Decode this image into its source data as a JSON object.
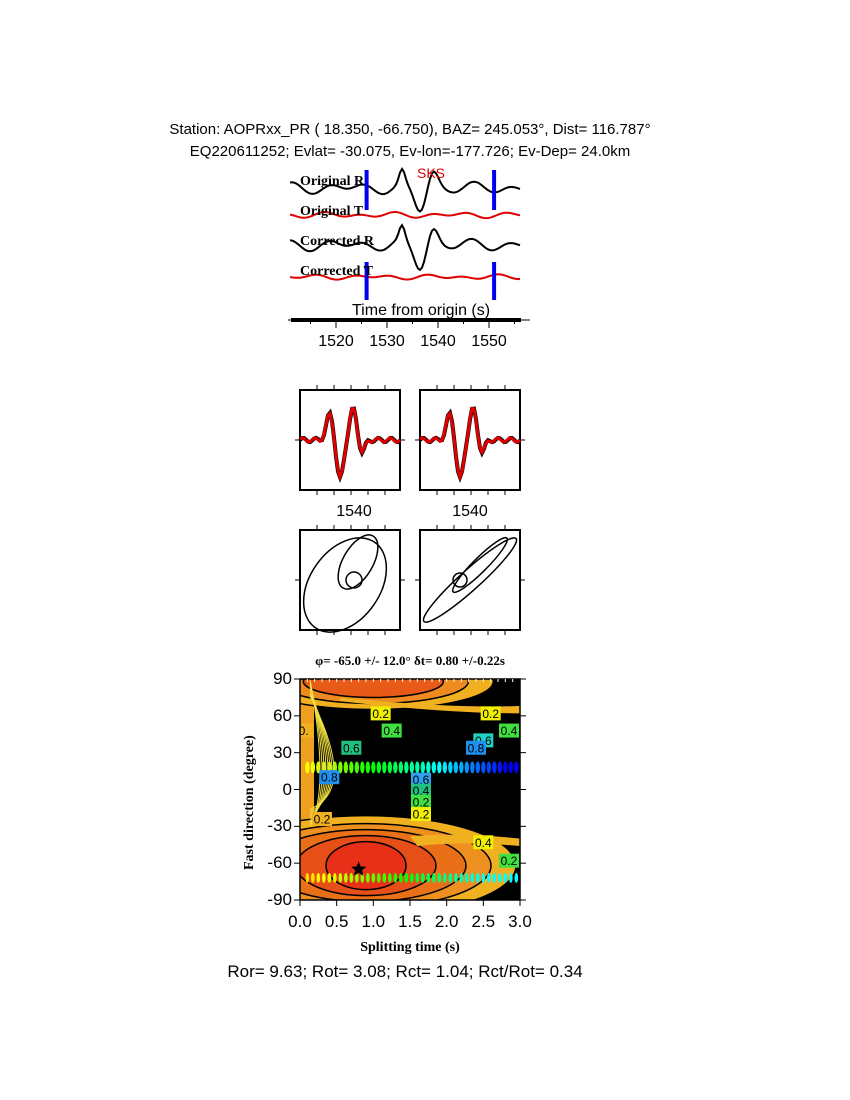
{
  "header": {
    "line1": "Station: AOPRxx_PR (  18.350,  -66.750), BAZ=  245.053°, Dist=  116.787°",
    "line2": "EQ220611252; Evlat= -30.075, Ev-lon=-177.726; Ev-Dep= 24.0km"
  },
  "chart_data": [
    {
      "type": "line",
      "title": "",
      "phase_label": "SKS",
      "traces": [
        "Original R",
        "Original T",
        "Corrected R",
        "Corrected T"
      ],
      "trace_colors": {
        "R": "#000000",
        "T": "#e00000"
      },
      "window_marker_color": "#0000ee",
      "window_markers": [
        1526,
        1551
      ],
      "xlabel": "Time from origin (s)",
      "xticks": [
        "1520",
        "1530",
        "1540",
        "1550"
      ],
      "xlim": [
        1513,
        1556
      ]
    },
    {
      "type": "line",
      "panels": [
        "waveform-comparison-original",
        "waveform-comparison-corrected"
      ],
      "xticks": [
        "1540",
        "1540"
      ]
    },
    {
      "type": "line",
      "panels": [
        "particle-motion-original",
        "particle-motion-corrected"
      ]
    },
    {
      "type": "heatmap",
      "title": "φ= -65.0 +/- 12.0° δt= 0.80 +/-0.22s",
      "xlabel": "Splitting time (s)",
      "ylabel": "Fast direction (degree)",
      "xlim": [
        0,
        3
      ],
      "ylim": [
        -90,
        90
      ],
      "xticks": [
        "0.0",
        "0.5",
        "1.0",
        "1.5",
        "2.0",
        "2.5",
        "3.0"
      ],
      "yticks": [
        "90",
        "60",
        "30",
        "0",
        "-30",
        "-60",
        "-90"
      ],
      "contour_labels": [
        "0.2",
        "0.2",
        "0.4",
        "0.4",
        "0.6",
        "0.6",
        "0.8",
        "0.8",
        "0.6",
        "0.4",
        "0.2",
        "0.2",
        "0.2",
        "0.4",
        "0.2",
        "0."
      ],
      "best_fit": {
        "dt": 0.8,
        "phi": -65.0
      }
    }
  ],
  "footer": "Ror= 9.63; Rot= 3.08; Rct= 1.04; Rct/Rot= 0.34"
}
